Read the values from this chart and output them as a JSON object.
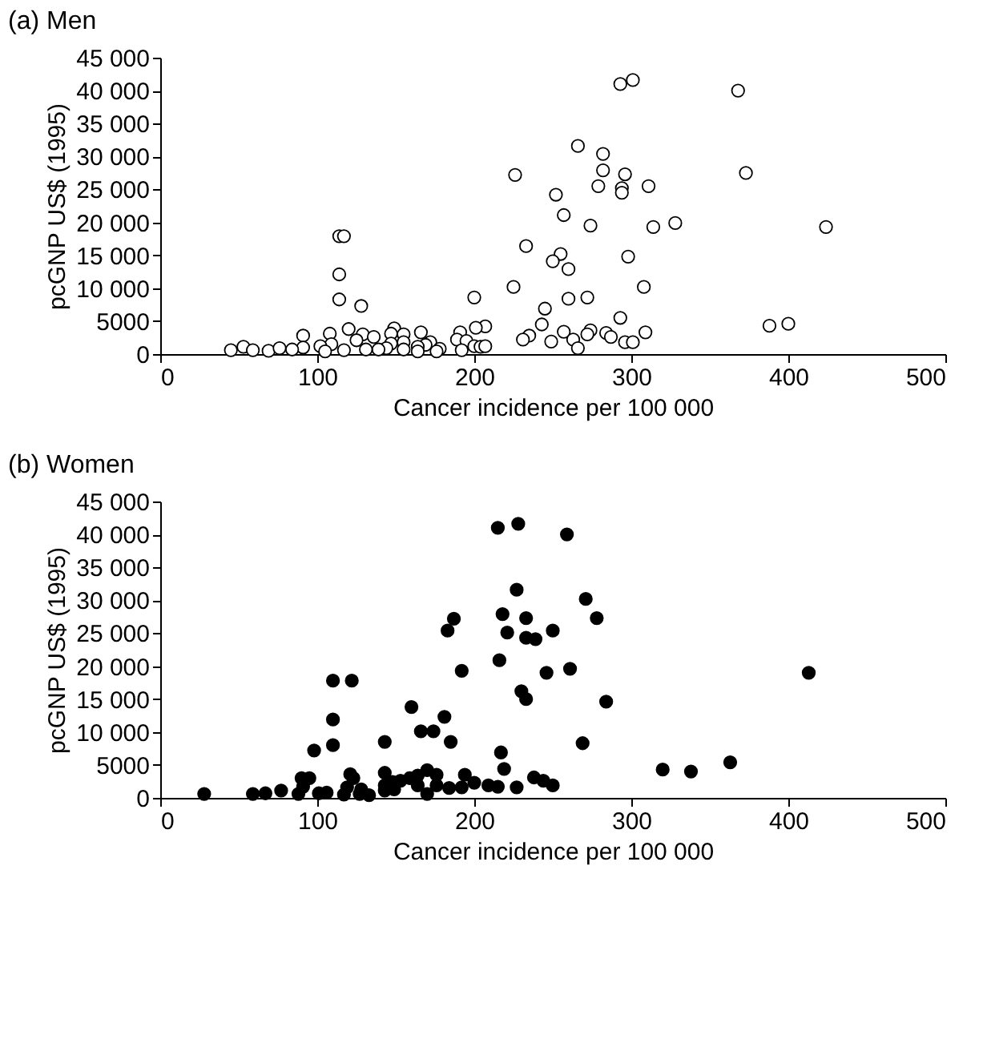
{
  "chart_data": [
    {
      "type": "scatter",
      "title": "(a) Men",
      "xlabel": "Cancer incidence per 100 000",
      "ylabel": "pcGNP US$ (1995)",
      "marker": "circle",
      "grid": false,
      "xlim": [
        0,
        500
      ],
      "xticks": [
        0,
        100,
        200,
        300,
        400,
        500
      ],
      "ylim": [
        0,
        45000
      ],
      "yticks": [
        0,
        5000,
        {
          "value": 10000,
          "label": "10 000"
        },
        {
          "value": 15000,
          "label": "15 000"
        },
        {
          "value": 20000,
          "label": "20 000"
        },
        {
          "value": 25000,
          "label": "25 000"
        },
        {
          "value": 30000,
          "label": "30 000"
        },
        {
          "value": 35000,
          "label": "35 000"
        },
        {
          "value": 40000,
          "label": "40 000"
        },
        {
          "value": 45000,
          "label": "45 000"
        }
      ],
      "series": [
        {
          "color": "#ffffff",
          "x": [
            293,
            301,
            368,
            266,
            282,
            282,
            296,
            373,
            226,
            279,
            294,
            294,
            311,
            252,
            257,
            274,
            314,
            328,
            424,
            114,
            117,
            233,
            255,
            250,
            298,
            260,
            114,
            225,
            308,
            200,
            260,
            272,
            114,
            128,
            245,
            293,
            388,
            400,
            243,
            207,
            201,
            120,
            149,
            274,
            257,
            309,
            284,
            235,
            231,
            287,
            263,
            272,
            249,
            296,
            301,
            266,
            191,
            166,
            155,
            147,
            129,
            108,
            91,
            136,
            125,
            189,
            195,
            172,
            169,
            155,
            147,
            200,
            204,
            207,
            178,
            164,
            155,
            144,
            139,
            131,
            117,
            109,
            102,
            91,
            53,
            45,
            59,
            69,
            76,
            84,
            105,
            192,
            164,
            176
          ],
          "values": [
            41000,
            41600,
            40000,
            31600,
            30400,
            27900,
            27300,
            27500,
            27200,
            25500,
            25200,
            24500,
            25500,
            24200,
            21100,
            19500,
            19300,
            19900,
            19300,
            17900,
            17900,
            16400,
            15200,
            14100,
            14800,
            12900,
            12100,
            10200,
            10200,
            8600,
            8400,
            8600,
            8300,
            7300,
            6900,
            5500,
            4300,
            4600,
            4500,
            4200,
            4000,
            3800,
            3900,
            3600,
            3400,
            3300,
            3200,
            2800,
            2200,
            2600,
            2200,
            3000,
            1900,
            1800,
            1800,
            900,
            3300,
            3300,
            3000,
            3100,
            3000,
            3100,
            2800,
            2600,
            2100,
            2200,
            2000,
            1800,
            1400,
            1800,
            1600,
            1200,
            1100,
            1200,
            800,
            1100,
            700,
            900,
            700,
            700,
            600,
            1500,
            1200,
            1000,
            1100,
            600,
            600,
            500,
            900,
            700,
            400,
            600,
            400,
            400
          ]
        }
      ]
    },
    {
      "type": "scatter",
      "title": "(b) Women",
      "xlabel": "Cancer incidence per 100 000",
      "ylabel": "pcGNP US$ (1995)",
      "marker": "circle",
      "grid": false,
      "xlim": [
        0,
        500
      ],
      "xticks": [
        0,
        100,
        200,
        300,
        400,
        500
      ],
      "ylim": [
        0,
        45000
      ],
      "yticks": [
        0,
        5000,
        {
          "value": 10000,
          "label": "10 000"
        },
        {
          "value": 15000,
          "label": "15 000"
        },
        {
          "value": 20000,
          "label": "20 000"
        },
        {
          "value": 25000,
          "label": "25 000"
        },
        {
          "value": 30000,
          "label": "30 000"
        },
        {
          "value": 35000,
          "label": "35 000"
        },
        {
          "value": 40000,
          "label": "40 000"
        },
        {
          "value": 45000,
          "label": "45 000"
        }
      ],
      "series": [
        {
          "color": "#000000",
          "x": [
            215,
            228,
            259,
            227,
            271,
            218,
            233,
            278,
            187,
            183,
            221,
            250,
            233,
            239,
            216,
            192,
            246,
            261,
            413,
            110,
            122,
            230,
            233,
            284,
            160,
            181,
            110,
            166,
            174,
            143,
            185,
            269,
            98,
            110,
            217,
            219,
            320,
            338,
            363,
            238,
            244,
            250,
            227,
            215,
            209,
            200,
            194,
            192,
            184,
            176,
            170,
            176,
            170,
            164,
            164,
            159,
            153,
            148,
            143,
            143,
            143,
            149,
            123,
            121,
            95,
            90,
            91,
            77,
            67,
            59,
            28,
            88,
            101,
            106,
            117,
            127,
            119,
            128,
            133
          ],
          "values": [
            41000,
            41600,
            40000,
            31600,
            30200,
            27900,
            27300,
            27300,
            27200,
            25400,
            25100,
            25400,
            24300,
            24100,
            20900,
            19300,
            19000,
            19600,
            19000,
            17800,
            17800,
            16200,
            15000,
            14600,
            13800,
            12300,
            11900,
            10100,
            10100,
            8500,
            8500,
            8300,
            7200,
            8000,
            6900,
            4400,
            4300,
            4000,
            5400,
            3100,
            2600,
            1900,
            1600,
            1700,
            1900,
            2300,
            3500,
            1600,
            1500,
            3500,
            4200,
            1900,
            600,
            1900,
            3400,
            3000,
            2600,
            2400,
            3800,
            1900,
            1100,
            1300,
            3000,
            3600,
            3000,
            3000,
            1700,
            1100,
            700,
            600,
            600,
            600,
            700,
            800,
            500,
            600,
            1600,
            1300,
            400
          ]
        }
      ]
    }
  ]
}
